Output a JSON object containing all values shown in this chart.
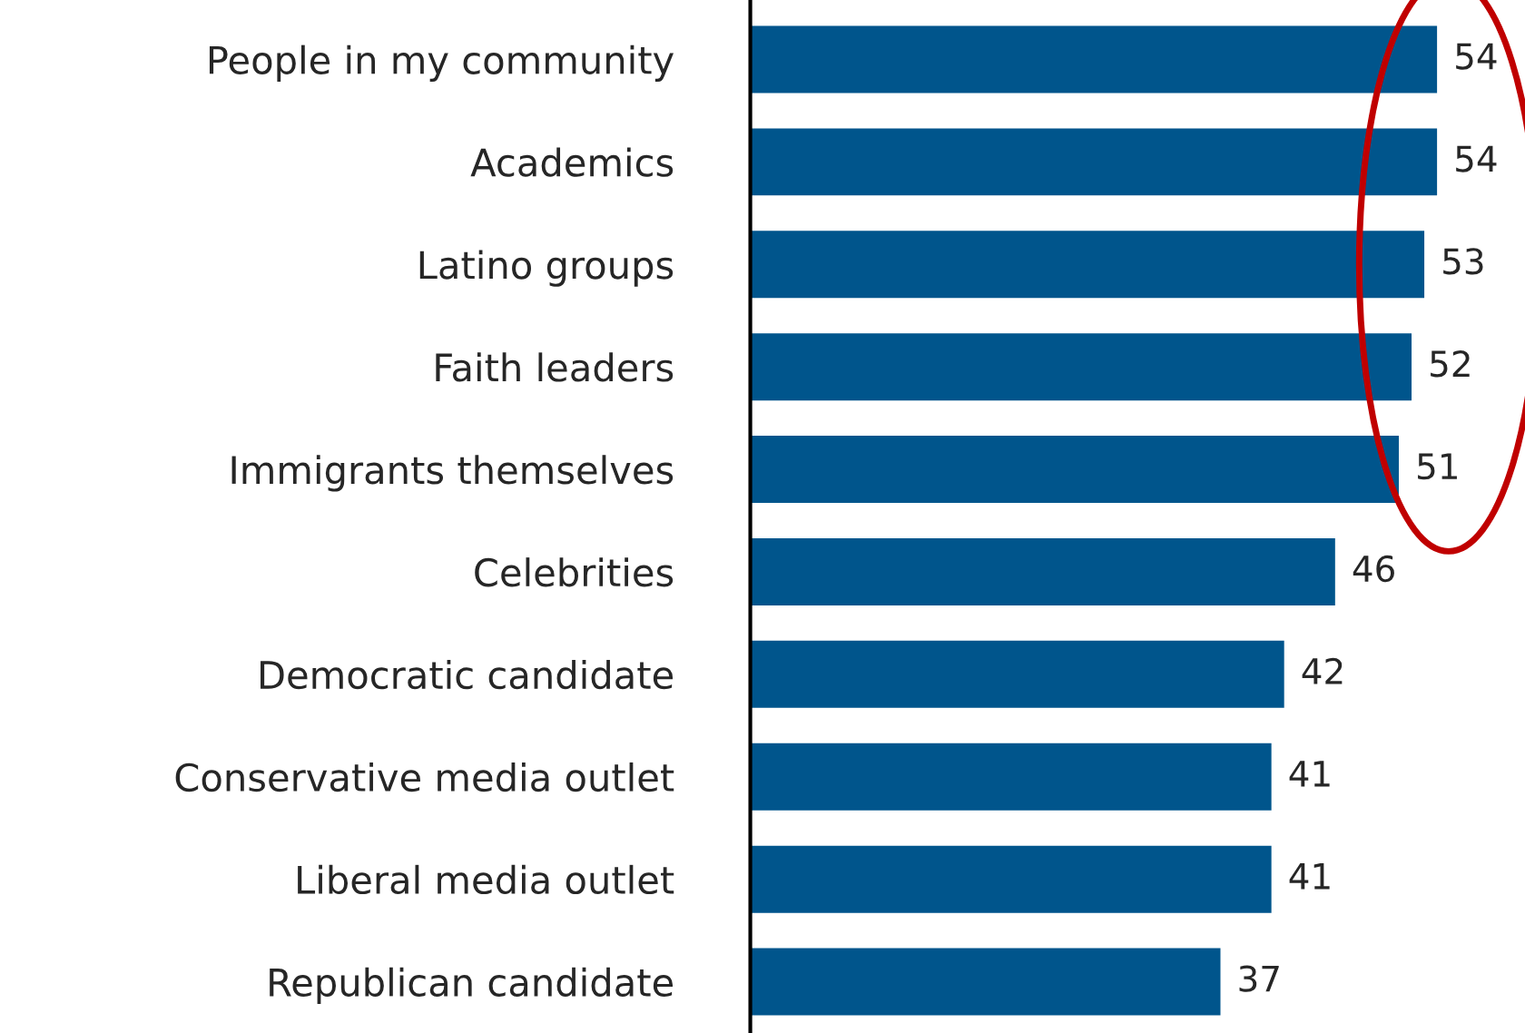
{
  "chart_data": {
    "type": "bar",
    "orientation": "horizontal",
    "categories": [
      "People in my community",
      "Academics",
      "Latino groups",
      "Faith leaders",
      "Immigrants themselves",
      "Celebrities",
      "Democratic candidate",
      "Conservative media outlet",
      "Liberal media outlet",
      "Republican candidate"
    ],
    "values": [
      54,
      54,
      53,
      52,
      51,
      46,
      42,
      41,
      41,
      37
    ],
    "color": "#00558c",
    "data_labels": true,
    "grid": false,
    "legend": false
  }
}
